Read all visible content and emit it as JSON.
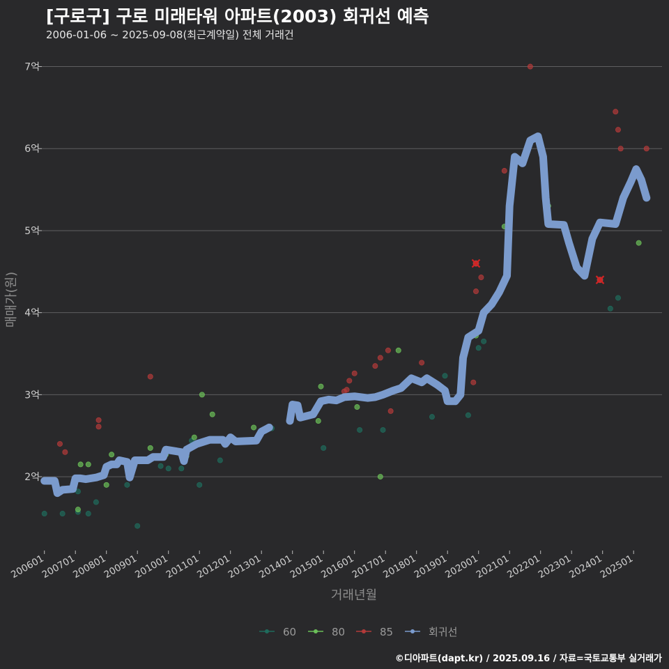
{
  "header": {
    "title": "[구로구] 구로 미래타워 아파트(2003) 회귀선 예측",
    "subtitle": "2006-01-06 ~ 2025-09-08(최근계약일) 전체 거래건"
  },
  "footer": {
    "caption": "©디아파트(dapt.kr) / 2025.09.16 / 자료=국토교통부 실거래가"
  },
  "colors": {
    "background": "#29292b",
    "grid": "#5e5e60",
    "s60": "#1f6b5c",
    "s80": "#6bbf59",
    "s85": "#b23a3a",
    "regression": "#7b9bcd"
  },
  "chart_data": {
    "type": "scatter",
    "title": "[구로구] 구로 미래타워 아파트(2003) 회귀선 예측",
    "subtitle": "2006-01-06 ~ 2025-09-08(최근계약일) 전체 거래건",
    "xlabel": "거래년월",
    "ylabel": "매매가(원)",
    "xlim": [
      "2005-12",
      "2025-12"
    ],
    "ylim": [
      1.1,
      7.2
    ],
    "y_unit": "억",
    "yticks": [
      2,
      3,
      4,
      5,
      6,
      7
    ],
    "ytick_labels": [
      "2억",
      "3억",
      "4억",
      "5억",
      "6억",
      "7억"
    ],
    "xticks": [
      "2006-01",
      "2007-01",
      "2008-01",
      "2009-01",
      "2010-01",
      "2011-01",
      "2012-01",
      "2013-01",
      "2014-01",
      "2015-01",
      "2016-01",
      "2017-01",
      "2018-01",
      "2019-01",
      "2020-01",
      "2021-01",
      "2022-01",
      "2023-01",
      "2024-01",
      "2025-01"
    ],
    "xtick_labels": [
      "200601",
      "200701",
      "200801",
      "200901",
      "201001",
      "201101",
      "201201",
      "201301",
      "201401",
      "201501",
      "201601",
      "201701",
      "201801",
      "201901",
      "202001",
      "202101",
      "202201",
      "202301",
      "202401",
      "202501"
    ],
    "grid": true,
    "legend_position": "bottom",
    "legend": [
      "60",
      "80",
      "85",
      "회귀선"
    ],
    "series": [
      {
        "name": "60",
        "type": "scatter",
        "points": [
          [
            "2006-01",
            1.55
          ],
          [
            "2006-08",
            1.55
          ],
          [
            "2007-02",
            1.82
          ],
          [
            "2007-02",
            1.57
          ],
          [
            "2007-06",
            1.55
          ],
          [
            "2007-09",
            1.69
          ],
          [
            "2008-09",
            1.9
          ],
          [
            "2009-01",
            1.4
          ],
          [
            "2009-10",
            2.13
          ],
          [
            "2010-01",
            2.1
          ],
          [
            "2010-06",
            2.1
          ],
          [
            "2010-10",
            2.44
          ],
          [
            "2011-01",
            1.9
          ],
          [
            "2011-09",
            2.2
          ],
          [
            "2013-05",
            2.59
          ],
          [
            "2015-01",
            2.35
          ],
          [
            "2016-03",
            2.57
          ],
          [
            "2017-00",
            2.57
          ],
          [
            "2018-07",
            2.73
          ],
          [
            "2019-00",
            3.23
          ],
          [
            "2019-09",
            2.75
          ],
          [
            "2020-01",
            3.57
          ],
          [
            "2020-03",
            3.65
          ],
          [
            "2024-04",
            4.05
          ],
          [
            "2024-07",
            4.18
          ]
        ]
      },
      {
        "name": "80",
        "type": "scatter",
        "points": [
          [
            "2007-02",
            1.6
          ],
          [
            "2007-03",
            2.15
          ],
          [
            "2007-06",
            2.15
          ],
          [
            "2008-01",
            1.9
          ],
          [
            "2008-03",
            2.27
          ],
          [
            "2009-06",
            2.35
          ],
          [
            "2010-00",
            2.27
          ],
          [
            "2010-08",
            2.25
          ],
          [
            "2010-11",
            2.48
          ],
          [
            "2011-02",
            3.0
          ],
          [
            "2011-06",
            2.76
          ],
          [
            "2012-10",
            2.6
          ],
          [
            "2014-11",
            2.68
          ],
          [
            "2014-12",
            3.1
          ],
          [
            "2016-02",
            2.85
          ],
          [
            "2016-11",
            2.0
          ],
          [
            "2017-06",
            3.54
          ],
          [
            "2020-00",
            3.72
          ],
          [
            "2020-11",
            5.05
          ],
          [
            "2022-04",
            5.3
          ],
          [
            "2025-03",
            4.85
          ]
        ]
      },
      {
        "name": "85",
        "type": "scatter",
        "points": [
          [
            "2006-07",
            2.4
          ],
          [
            "2006-09",
            2.3
          ],
          [
            "2007-10",
            2.69
          ],
          [
            "2007-10",
            2.61
          ],
          [
            "2009-06",
            3.22
          ],
          [
            "2015-09",
            3.04
          ],
          [
            "2015-10",
            3.06
          ],
          [
            "2015-11",
            3.17
          ],
          [
            "2016-01",
            3.26
          ],
          [
            "2016-09",
            3.35
          ],
          [
            "2016-11",
            3.45
          ],
          [
            "2017-02",
            3.54
          ],
          [
            "2017-03",
            2.8
          ],
          [
            "2018-03",
            3.39
          ],
          [
            "2019-11",
            3.15
          ],
          [
            "2019-12",
            4.26
          ],
          [
            "2020-00",
            4.6
          ],
          [
            "2020-02",
            4.43
          ],
          [
            "2020-11",
            5.73
          ],
          [
            "2021-09",
            7.0
          ],
          [
            "2023-12",
            4.4
          ],
          [
            "2024-06",
            6.45
          ],
          [
            "2024-07",
            6.23
          ],
          [
            "2024-08",
            6.0
          ],
          [
            "2025-06",
            6.0
          ]
        ]
      },
      {
        "name": "회귀선",
        "type": "line",
        "segments": [
          [
            [
              "2006-01",
              1.95
            ],
            [
              "2006-05",
              1.95
            ],
            [
              "2006-06",
              1.8
            ],
            [
              "2006-08",
              1.84
            ],
            [
              "2006-12",
              1.85
            ],
            [
              "2007-01",
              1.98
            ],
            [
              "2007-03",
              1.98
            ],
            [
              "2007-05",
              1.97
            ],
            [
              "2007-09",
              1.99
            ],
            [
              "2008-00",
              2.02
            ],
            [
              "2008-01",
              2.12
            ],
            [
              "2008-03",
              2.15
            ],
            [
              "2008-05",
              2.15
            ],
            [
              "2008-06",
              2.2
            ],
            [
              "2008-09",
              2.18
            ],
            [
              "2008-10",
              1.99
            ],
            [
              "2009-00",
              2.2
            ],
            [
              "2009-05",
              2.2
            ],
            [
              "2009-07",
              2.24
            ],
            [
              "2009-11",
              2.24
            ],
            [
              "2010-00",
              2.33
            ],
            [
              "2010-04",
              2.31
            ],
            [
              "2010-06",
              2.3
            ],
            [
              "2010-07",
              2.19
            ],
            [
              "2010-08",
              2.33
            ],
            [
              "2011-00",
              2.4
            ],
            [
              "2011-05",
              2.45
            ],
            [
              "2011-10",
              2.45
            ],
            [
              "2011-11",
              2.4
            ],
            [
              "2012-01",
              2.48
            ],
            [
              "2012-03",
              2.43
            ],
            [
              "2012-11",
              2.44
            ],
            [
              "2013-01",
              2.55
            ],
            [
              "2013-04",
              2.6
            ]
          ],
          [
            [
              "2014-00",
              2.68
            ],
            [
              "2014-01",
              2.88
            ],
            [
              "2014-03",
              2.87
            ],
            [
              "2014-04",
              2.72
            ],
            [
              "2014-09",
              2.76
            ],
            [
              "2014-12",
              2.92
            ],
            [
              "2015-03",
              2.94
            ],
            [
              "2015-06",
              2.93
            ],
            [
              "2015-09",
              2.97
            ],
            [
              "2016-01",
              2.98
            ],
            [
              "2016-06",
              2.96
            ],
            [
              "2016-09",
              2.97
            ],
            [
              "2017-00",
              3.0
            ],
            [
              "2017-04",
              3.05
            ],
            [
              "2017-07",
              3.08
            ],
            [
              "2017-11",
              3.2
            ],
            [
              "2018-03",
              3.15
            ],
            [
              "2018-05",
              3.2
            ],
            [
              "2018-09",
              3.12
            ],
            [
              "2018-12",
              3.05
            ],
            [
              "2019-01",
              2.92
            ],
            [
              "2019-04",
              2.92
            ],
            [
              "2019-06",
              3.0
            ],
            [
              "2019-07",
              3.45
            ],
            [
              "2019-09",
              3.7
            ],
            [
              "2020-01",
              3.78
            ],
            [
              "2020-03",
              4.0
            ],
            [
              "2020-06",
              4.1
            ],
            [
              "2020-09",
              4.25
            ],
            [
              "2020-12",
              4.45
            ],
            [
              "2021-01",
              5.3
            ],
            [
              "2021-03",
              5.9
            ],
            [
              "2021-06",
              5.82
            ],
            [
              "2021-09",
              6.1
            ],
            [
              "2021-12",
              6.15
            ],
            [
              "2022-02",
              5.9
            ],
            [
              "2022-03",
              5.4
            ],
            [
              "2022-04",
              5.08
            ],
            [
              "2022-10",
              5.07
            ],
            [
              "2023-00",
              4.85
            ],
            [
              "2023-03",
              4.55
            ],
            [
              "2023-06",
              4.45
            ],
            [
              "2023-09",
              4.9
            ],
            [
              "2024-00",
              5.1
            ],
            [
              "2024-06",
              5.08
            ],
            [
              "2024-09",
              5.4
            ],
            [
              "2024-12",
              5.6
            ],
            [
              "2025-02",
              5.75
            ],
            [
              "2025-04",
              5.62
            ],
            [
              "2025-06",
              5.4
            ]
          ]
        ]
      }
    ],
    "highlight_points": [
      {
        "series": "85",
        "x": "2020-00",
        "y": 4.6
      },
      {
        "series": "85",
        "x": "2023-12",
        "y": 4.4
      }
    ]
  }
}
